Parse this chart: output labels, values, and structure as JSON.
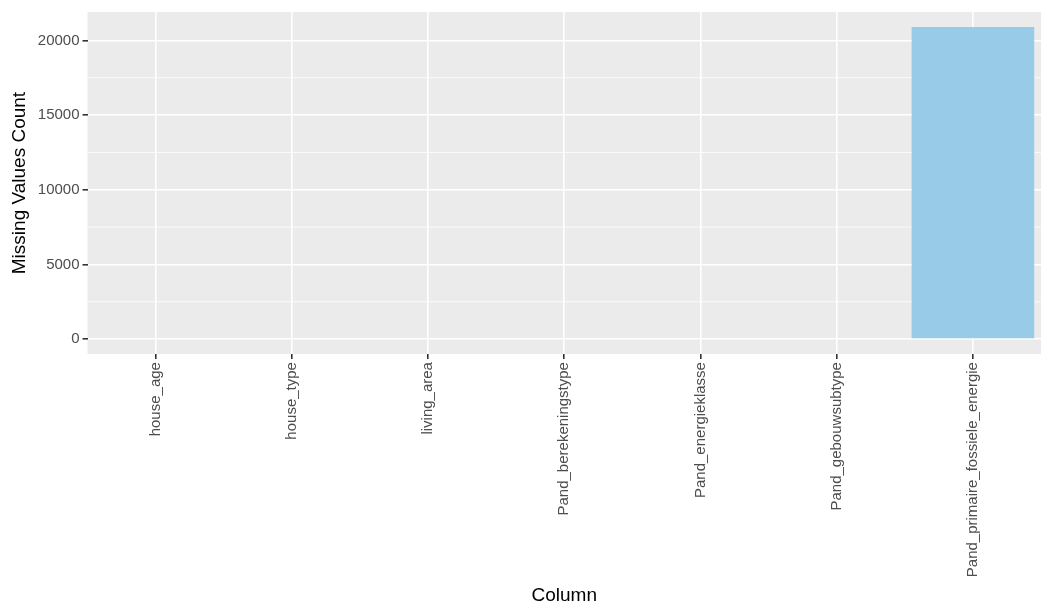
{
  "chart_data": {
    "type": "bar",
    "xlabel": "Column",
    "ylabel": "Missing Values Count",
    "categories": [
      "house_age",
      "house_type",
      "living_area",
      "Pand_berekeningstype",
      "Pand_energieklasse",
      "Pand_gebouwsubtype",
      "Pand_primaire_fossiele_energie"
    ],
    "values": [
      0,
      0,
      0,
      0,
      0,
      0,
      20900
    ],
    "color": "#97cbe8",
    "ylim": [
      -1000,
      21900
    ],
    "yticks": [
      0,
      5000,
      10000,
      15000,
      20000
    ],
    "grid": true
  }
}
